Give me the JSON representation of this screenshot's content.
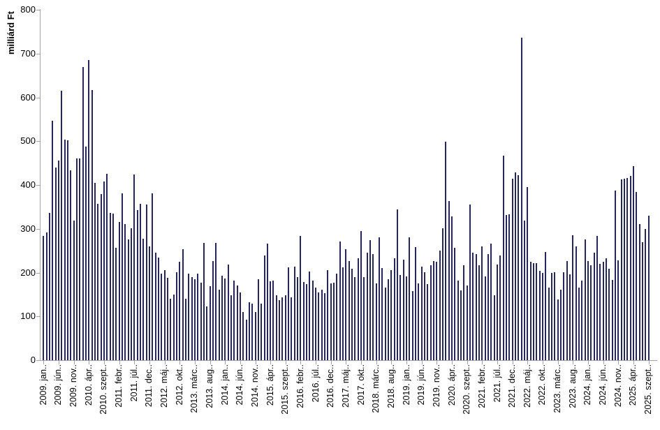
{
  "colors": {
    "bar": "#26265a",
    "axis": "#a3a3ad",
    "text": "#000000",
    "background": "#ffffff"
  },
  "chart_data": {
    "type": "bar",
    "title": "",
    "xlabel": "",
    "ylabel": "milliárd Ft",
    "ylim": [
      0,
      800
    ],
    "yticks": [
      0,
      100,
      200,
      300,
      400,
      500,
      600,
      700,
      800
    ],
    "grid": false,
    "legend": false,
    "x_start": "2009. jan",
    "x_end": "2025. szept",
    "x_tick_every_n_months": 5,
    "x_tick_labels": [
      "2009. jan..",
      "2009. jún..",
      "2009. nov..",
      "2010. ápr..",
      "2010. szept..",
      "2011. febr..",
      "2011. júl..",
      "2011. dec..",
      "2012. máj..",
      "2012. okt..",
      "2013. márc..",
      "2013. aug..",
      "2014. jan..",
      "2014. jún..",
      "2014. nov..",
      "2015. ápr..",
      "2015. szept..",
      "2016. febr..",
      "2016. júl..",
      "2016. dec..",
      "2017. máj..",
      "2017. okt..",
      "2018. márc..",
      "2018. aug..",
      "2019. jan..",
      "2019. jún..",
      "2019. nov..",
      "2020. ápr..",
      "2020. szept..",
      "2021. febr..",
      "2021. júl..",
      "2021. dec..",
      "2022. máj..",
      "2022. okt..",
      "2023. márc..",
      "2023. aug..",
      "2024. jan..",
      "2024. jún..",
      "2024. nov..",
      "2025. ápr..",
      "2025. szept.."
    ],
    "monthly_values_from_2009_01": [
      283,
      291,
      337,
      546,
      440,
      456,
      615,
      504,
      502,
      434,
      319,
      460,
      461,
      670,
      487,
      686,
      617,
      405,
      357,
      379,
      408,
      425,
      336,
      335,
      257,
      316,
      381,
      310,
      275,
      302,
      424,
      342,
      357,
      278,
      355,
      259,
      381,
      246,
      235,
      198,
      206,
      188,
      140,
      150,
      201,
      225,
      254,
      140,
      198,
      190,
      185,
      198,
      177,
      268,
      123,
      169,
      227,
      268,
      161,
      193,
      186,
      219,
      148,
      182,
      170,
      154,
      110,
      93,
      133,
      129,
      110,
      185,
      129,
      239,
      266,
      180,
      181,
      149,
      137,
      144,
      148,
      212,
      144,
      214,
      189,
      283,
      178,
      174,
      202,
      181,
      166,
      154,
      161,
      153,
      206,
      175,
      177,
      198,
      271,
      212,
      254,
      227,
      209,
      189,
      232,
      295,
      190,
      245,
      274,
      242,
      176,
      280,
      210,
      166,
      185,
      206,
      233,
      345,
      194,
      229,
      191,
      280,
      157,
      258,
      176,
      214,
      201,
      174,
      217,
      227,
      225,
      250,
      302,
      499,
      363,
      328,
      257,
      182,
      159,
      217,
      170,
      355,
      246,
      242,
      217,
      259,
      191,
      243,
      266,
      149,
      218,
      239,
      467,
      331,
      333,
      414,
      428,
      423,
      736,
      319,
      396,
      225,
      221,
      222,
      204,
      199,
      247,
      165,
      200,
      201,
      138,
      161,
      201,
      227,
      196,
      285,
      260,
      165,
      181,
      276,
      226,
      217,
      245,
      283,
      220,
      224,
      232,
      209,
      183,
      388,
      228,
      412,
      414,
      416,
      420,
      443,
      384,
      311,
      270,
      300,
      330
    ]
  }
}
